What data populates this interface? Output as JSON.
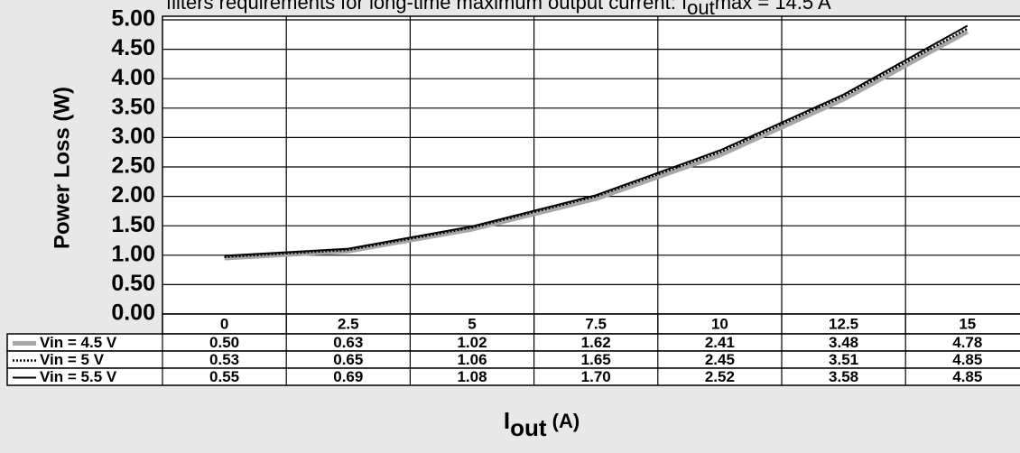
{
  "chart_data": {
    "type": "line",
    "title": [
      "filters requirements for long-time maximum output current: I",
      "out",
      "max = 14.5 A"
    ],
    "ylabel": "Power Loss (W)",
    "xlabel": [
      "I",
      "out",
      " (A)"
    ],
    "categories": [
      "0",
      "2.5",
      "5",
      "7.5",
      "10",
      "12.5",
      "15"
    ],
    "ylim": [
      0,
      5
    ],
    "yticks": [
      {
        "value": 0,
        "label": "0.00"
      },
      {
        "value": 0.5,
        "label": "0.50"
      },
      {
        "value": 1,
        "label": "1.00"
      },
      {
        "value": 1.5,
        "label": "1.50"
      },
      {
        "value": 2,
        "label": "2.00"
      },
      {
        "value": 2.5,
        "label": "2.50"
      },
      {
        "value": 3,
        "label": "3.00"
      },
      {
        "value": 3.5,
        "label": "3.50"
      },
      {
        "value": 4,
        "label": "4.00"
      },
      {
        "value": 4.5,
        "label": "4.50"
      },
      {
        "value": 5,
        "label": "5.00"
      }
    ],
    "grid": true,
    "series": [
      {
        "name": "Vin = 4.5 V",
        "color": "#a6a6a6",
        "style": "thick",
        "values": [
          0.95,
          1.07,
          1.44,
          1.96,
          2.7,
          3.65,
          4.8
        ]
      },
      {
        "name": "Vin = 5 V",
        "color": "#000000",
        "style": "dotted",
        "values": [
          0.97,
          1.09,
          1.47,
          2.0,
          2.75,
          3.7,
          4.85
        ]
      },
      {
        "name": "Vin = 5.5 V",
        "color": "#000000",
        "style": "solid",
        "values": [
          0.99,
          1.11,
          1.49,
          2.02,
          2.78,
          3.73,
          4.9
        ]
      }
    ],
    "table": {
      "rows": [
        [
          "0.50",
          "0.63",
          "1.02",
          "1.62",
          "2.41",
          "3.48",
          "4.78"
        ],
        [
          "0.53",
          "0.65",
          "1.06",
          "1.65",
          "2.45",
          "3.51",
          "4.85"
        ],
        [
          "0.55",
          "0.69",
          "1.08",
          "1.70",
          "2.52",
          "3.58",
          "4.85"
        ]
      ]
    }
  }
}
